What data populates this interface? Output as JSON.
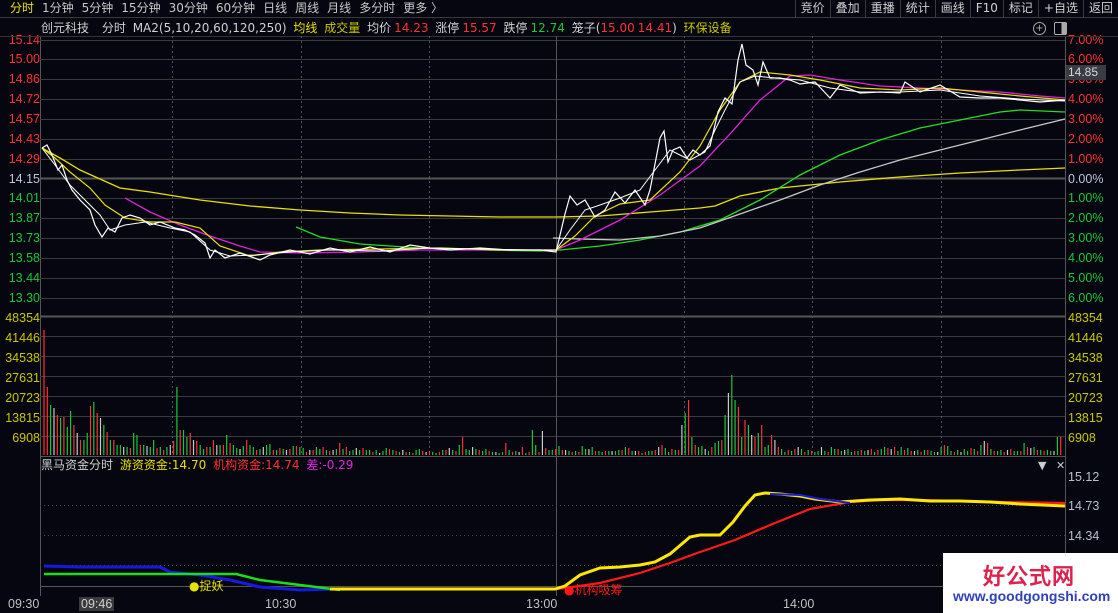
{
  "toolbar": {
    "period_tabs": [
      "分时",
      "1分钟",
      "5分钟",
      "15分钟",
      "30分钟",
      "60分钟",
      "日线",
      "周线",
      "月线",
      "多分时",
      "更多 〉"
    ],
    "active_tab": "分时",
    "right_buttons": [
      "竞价",
      "叠加",
      "重播",
      "统计",
      "画线",
      "F10",
      "标记",
      "+自选",
      "返回"
    ]
  },
  "info": {
    "stock_name": "创元科技",
    "mode": "分时",
    "ma_label": "MA2(5,10,20,60,120,250)",
    "avg_line_label": "均线",
    "volume_label": "成交量",
    "avg_price_label": "均价",
    "avg_price": "14.23",
    "limit_up_label": "涨停",
    "limit_up": "15.57",
    "limit_down_label": "跌停",
    "limit_down": "12.74",
    "cage_label": "笼子(",
    "cage_high": "15.00",
    "cage_low": "14.41",
    "cage_close": ")",
    "sector": "环保设备"
  },
  "price_axis_left": [
    {
      "v": "15.14",
      "c": "r"
    },
    {
      "v": "15.00",
      "c": "r"
    },
    {
      "v": "14.86",
      "c": "r"
    },
    {
      "v": "14.72",
      "c": "r"
    },
    {
      "v": "14.57",
      "c": "r"
    },
    {
      "v": "14.43",
      "c": "r"
    },
    {
      "v": "14.29",
      "c": "r"
    },
    {
      "v": "14.15",
      "c": "w"
    },
    {
      "v": "14.01",
      "c": "g"
    },
    {
      "v": "13.87",
      "c": "g"
    },
    {
      "v": "13.73",
      "c": "g"
    },
    {
      "v": "13.58",
      "c": "g"
    },
    {
      "v": "13.44",
      "c": "g"
    },
    {
      "v": "13.30",
      "c": "g"
    }
  ],
  "pct_axis_right": [
    {
      "v": "7.00%",
      "c": "r"
    },
    {
      "v": "6.00%",
      "c": "r"
    },
    {
      "v": "5.00%",
      "c": "r"
    },
    {
      "v": "4.00%",
      "c": "r"
    },
    {
      "v": "3.00%",
      "c": "r"
    },
    {
      "v": "2.00%",
      "c": "r"
    },
    {
      "v": "1.00%",
      "c": "r"
    },
    {
      "v": "0.00%",
      "c": "w"
    },
    {
      "v": "1.00%",
      "c": "g"
    },
    {
      "v": "2.00%",
      "c": "g"
    },
    {
      "v": "3.00%",
      "c": "g"
    },
    {
      "v": "4.00%",
      "c": "g"
    },
    {
      "v": "5.00%",
      "c": "g"
    },
    {
      "v": "6.00%",
      "c": "g"
    }
  ],
  "current_price_tag": "14.85",
  "volume_axis": [
    "48354",
    "41446",
    "34538",
    "27631",
    "20723",
    "13815",
    "6908"
  ],
  "sub_indicator": {
    "title": "黑马资金分时",
    "hot_money_label": "游资资金:",
    "hot_money_value": "14.70",
    "inst_label": "机构资金:",
    "inst_value": "14.74",
    "diff_label": "差:",
    "diff_value": "-0.29",
    "axis": [
      "15.12",
      "14.73",
      "14.34"
    ],
    "markers": {
      "catch": "捉妖",
      "absorb": "机构吸筹"
    }
  },
  "time_axis": {
    "labels": [
      "09:30",
      "10:30",
      "13:00",
      "14:00"
    ],
    "cursor": "09:46"
  },
  "watermark": {
    "title": "好公式网",
    "url": "www.goodgongshi.com"
  },
  "colors": {
    "up": "#ff3030",
    "down": "#18c838",
    "neutral": "#d0d0d0",
    "accent": "#e8e000",
    "magenta": "#e020e0"
  }
}
